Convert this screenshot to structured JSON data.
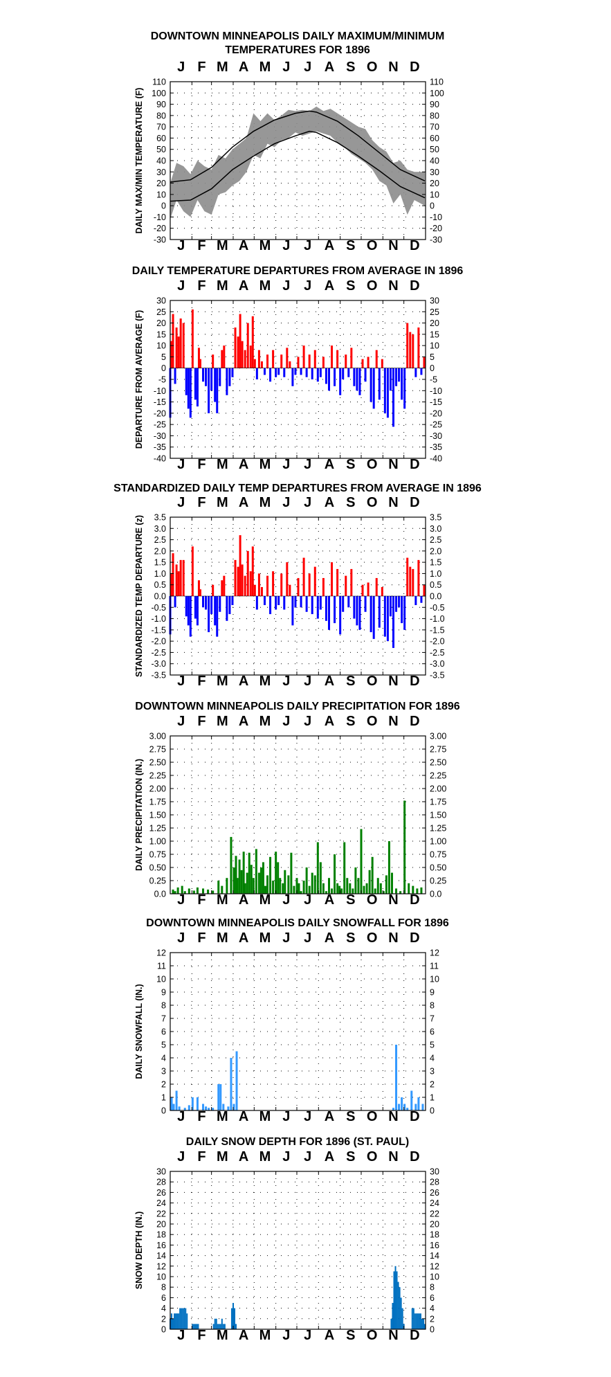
{
  "months": [
    "J",
    "F",
    "M",
    "A",
    "M",
    "J",
    "J",
    "A",
    "S",
    "O",
    "N",
    "D"
  ],
  "chart_data": [
    {
      "type": "line",
      "title": "DOWNTOWN MINNEAPOLIS DAILY MAXIMUM/MINIMUM",
      "subtitle": "TEMPERATURES FOR 1896",
      "ylabel": "DAILY MAX/MIN TEMPERATURE (F)",
      "ylim": [
        -30,
        110
      ],
      "yticks": [
        -30,
        -20,
        -10,
        0,
        10,
        20,
        30,
        40,
        50,
        60,
        70,
        80,
        90,
        100,
        110
      ],
      "ytick_labels": [
        "-30",
        "-20",
        "-10",
        "0",
        "10",
        "20",
        "30",
        "40",
        "50",
        "60",
        "70",
        "80",
        "90",
        "100",
        "110"
      ],
      "x_unit": "day of year",
      "series": [
        {
          "kind": "band",
          "color": "#8c8c8c",
          "x": [
            1,
            10,
            20,
            30,
            40,
            50,
            60,
            70,
            80,
            90,
            100,
            110,
            120,
            130,
            140,
            150,
            160,
            170,
            180,
            190,
            200,
            210,
            220,
            230,
            240,
            250,
            260,
            270,
            280,
            290,
            300,
            310,
            320,
            330,
            340,
            350,
            365
          ],
          "high": [
            20,
            38,
            35,
            28,
            40,
            35,
            32,
            45,
            42,
            50,
            55,
            60,
            82,
            75,
            82,
            76,
            80,
            85,
            84,
            85,
            84,
            88,
            84,
            86,
            82,
            78,
            74,
            70,
            68,
            58,
            52,
            48,
            38,
            40,
            32,
            30,
            30
          ],
          "low": [
            -12,
            5,
            -5,
            -10,
            5,
            -5,
            -8,
            10,
            12,
            18,
            22,
            30,
            45,
            42,
            55,
            52,
            58,
            60,
            65,
            62,
            64,
            66,
            64,
            62,
            56,
            52,
            46,
            42,
            38,
            32,
            22,
            18,
            2,
            10,
            -8,
            5,
            0
          ]
        },
        {
          "kind": "normal_high",
          "color": "#000000",
          "x": [
            1,
            30,
            60,
            90,
            120,
            150,
            180,
            200,
            210,
            240,
            270,
            300,
            330,
            365
          ],
          "y": [
            21,
            23,
            34,
            52,
            66,
            76,
            82,
            84,
            83,
            75,
            62,
            47,
            32,
            22
          ]
        },
        {
          "kind": "normal_low",
          "color": "#000000",
          "x": [
            1,
            30,
            60,
            90,
            120,
            150,
            180,
            200,
            210,
            240,
            270,
            300,
            330,
            365
          ],
          "y": [
            4,
            5,
            15,
            32,
            44,
            55,
            62,
            66,
            65,
            56,
            44,
            31,
            17,
            7
          ]
        }
      ]
    },
    {
      "type": "bar",
      "title": "DAILY TEMPERATURE DEPARTURES FROM AVERAGE IN 1896",
      "ylabel": "DEPARTURE FROM AVERAGE (F)",
      "ylim": [
        -40,
        30
      ],
      "yticks": [
        -40,
        -35,
        -30,
        -25,
        -20,
        -15,
        -10,
        -5,
        0,
        5,
        10,
        15,
        20,
        25,
        30
      ],
      "ytick_labels": [
        "-40",
        "-35",
        "-30",
        "-25",
        "-20",
        "-15",
        "-10",
        "-5",
        "0",
        "5",
        "10",
        "15",
        "20",
        "25",
        "30"
      ],
      "positive_color": "#ff0000",
      "negative_color": "#0000ff",
      "x": [
        1,
        3,
        5,
        8,
        10,
        13,
        16,
        20,
        24,
        27,
        30,
        33,
        37,
        40,
        42,
        44,
        48,
        52,
        56,
        60,
        62,
        65,
        68,
        72,
        75,
        78,
        82,
        86,
        90,
        94,
        98,
        101,
        104,
        108,
        112,
        116,
        119,
        122,
        125,
        128,
        132,
        136,
        140,
        144,
        148,
        152,
        156,
        160,
        164,
        168,
        172,
        176,
        180,
        184,
        188,
        192,
        196,
        200,
        204,
        208,
        212,
        216,
        220,
        224,
        228,
        232,
        236,
        240,
        244,
        248,
        252,
        256,
        260,
        264,
        268,
        272,
        276,
        280,
        284,
        288,
        292,
        296,
        300,
        304,
        308,
        312,
        316,
        320,
        324,
        328,
        332,
        336,
        340,
        344,
        348,
        352,
        356,
        360,
        364
      ],
      "values": [
        -22,
        12,
        24,
        -7,
        18,
        14,
        22,
        20,
        -12,
        -18,
        -22,
        26,
        -14,
        -17,
        9,
        4,
        -6,
        -8,
        -20,
        -10,
        6,
        -15,
        -20,
        -8,
        8,
        10,
        -12,
        -8,
        -4,
        18,
        14,
        24,
        12,
        8,
        20,
        10,
        23,
        4,
        -5,
        8,
        3,
        -3,
        6,
        -6,
        8,
        -4,
        -3,
        6,
        -4,
        9,
        3,
        -8,
        -3,
        5,
        -3,
        10,
        -4,
        6,
        -5,
        8,
        -6,
        -4,
        5,
        -7,
        -10,
        10,
        -8,
        8,
        -12,
        -5,
        6,
        -4,
        9,
        -8,
        -10,
        -12,
        4,
        -6,
        5,
        -15,
        -18,
        8,
        -14,
        4,
        -20,
        -22,
        -10,
        -26,
        -8,
        -6,
        -14,
        -18,
        20,
        16,
        15,
        -4,
        18,
        -3,
        5
      ]
    },
    {
      "type": "bar",
      "title": "STANDARDIZED DAILY TEMP DEPARTURES FROM AVERAGE IN 1896",
      "ylabel": "STANDARDIZED TEMP DEPARTURE (z)",
      "ylim": [
        -3.5,
        3.5
      ],
      "yticks": [
        -3.5,
        -3,
        -2.5,
        -2,
        -1.5,
        -1,
        -0.5,
        0,
        0.5,
        1,
        1.5,
        2,
        2.5,
        3,
        3.5
      ],
      "ytick_labels": [
        "-3.5",
        "-3.0",
        "-2.5",
        "-2.0",
        "-1.5",
        "-1.0",
        "-0.5",
        "0.0",
        "0.5",
        "1.0",
        "1.5",
        "2.0",
        "2.5",
        "3.0",
        "3.5"
      ],
      "positive_color": "#ff0000",
      "negative_color": "#0000ff",
      "x": [
        1,
        3,
        5,
        8,
        10,
        13,
        16,
        20,
        24,
        27,
        30,
        33,
        37,
        40,
        42,
        44,
        48,
        52,
        56,
        60,
        62,
        65,
        68,
        72,
        75,
        78,
        82,
        86,
        90,
        94,
        98,
        101,
        104,
        108,
        112,
        116,
        119,
        122,
        125,
        128,
        132,
        136,
        140,
        144,
        148,
        152,
        156,
        160,
        164,
        168,
        172,
        176,
        180,
        184,
        188,
        192,
        196,
        200,
        204,
        208,
        212,
        216,
        220,
        224,
        228,
        232,
        236,
        240,
        244,
        248,
        252,
        256,
        260,
        264,
        268,
        272,
        276,
        280,
        284,
        288,
        292,
        296,
        300,
        304,
        308,
        312,
        316,
        320,
        324,
        328,
        332,
        336,
        340,
        344,
        348,
        352,
        356,
        360,
        364
      ],
      "values": [
        -1.7,
        1.0,
        1.9,
        -0.5,
        1.4,
        1.1,
        1.6,
        1.6,
        -0.9,
        -1.3,
        -1.8,
        2.2,
        -1.0,
        -1.3,
        0.7,
        0.3,
        -0.5,
        -0.6,
        -1.6,
        -0.8,
        0.5,
        -1.3,
        -1.8,
        -0.7,
        0.7,
        0.9,
        -1.1,
        -0.8,
        -0.4,
        1.6,
        1.3,
        2.7,
        1.4,
        0.9,
        2.0,
        1.1,
        2.2,
        0.5,
        -0.6,
        1.0,
        0.4,
        -0.4,
        0.9,
        -0.8,
        1.1,
        -0.6,
        -0.4,
        1.0,
        -0.6,
        1.5,
        0.5,
        -1.3,
        -0.5,
        0.8,
        -0.5,
        1.7,
        -0.7,
        1.0,
        -0.8,
        1.3,
        -1.0,
        -0.6,
        0.8,
        -1.1,
        -1.5,
        1.5,
        -1.2,
        1.2,
        -1.7,
        -0.7,
        0.9,
        -0.5,
        1.2,
        -1.0,
        -1.3,
        -1.5,
        0.5,
        -0.7,
        0.6,
        -1.6,
        -1.9,
        0.8,
        -1.4,
        0.4,
        -1.8,
        -2.0,
        -0.9,
        -2.3,
        -0.7,
        -0.5,
        -1.2,
        -1.5,
        1.7,
        1.3,
        1.2,
        -0.4,
        1.6,
        -0.3,
        0.5
      ]
    },
    {
      "type": "bar",
      "title": "DOWNTOWN MINNEAPOLIS DAILY PRECIPITATION FOR 1896",
      "ylabel": "DAILY PRECIPITATION (IN.)",
      "ylim": [
        0,
        3
      ],
      "yticks": [
        0,
        0.25,
        0.5,
        0.75,
        1,
        1.25,
        1.5,
        1.75,
        2,
        2.25,
        2.5,
        2.75,
        3
      ],
      "ytick_labels": [
        "0.0",
        "0.25",
        "0.50",
        "0.75",
        "1.00",
        "1.25",
        "1.50",
        "1.75",
        "2.00",
        "2.25",
        "2.50",
        "2.75",
        "3.00"
      ],
      "color": "#008000",
      "x": [
        5,
        8,
        12,
        18,
        22,
        28,
        35,
        40,
        48,
        55,
        62,
        70,
        75,
        82,
        88,
        92,
        95,
        97,
        100,
        103,
        106,
        108,
        111,
        114,
        117,
        120,
        124,
        128,
        131,
        134,
        137,
        140,
        144,
        148,
        152,
        155,
        158,
        162,
        165,
        170,
        174,
        178,
        182,
        185,
        188,
        192,
        196,
        200,
        204,
        208,
        212,
        216,
        220,
        224,
        228,
        232,
        236,
        240,
        243,
        246,
        250,
        254,
        258,
        262,
        266,
        270,
        274,
        278,
        282,
        286,
        290,
        294,
        298,
        302,
        306,
        310,
        314,
        318,
        324,
        330,
        336,
        342,
        348,
        354,
        360
      ],
      "values": [
        0.08,
        0.05,
        0.12,
        0.15,
        0.05,
        0.1,
        0.06,
        0.12,
        0.1,
        0.08,
        0.06,
        0.25,
        0.15,
        0.3,
        1.08,
        0.5,
        0.72,
        0.3,
        0.65,
        0.45,
        0.8,
        0.2,
        0.4,
        0.78,
        0.55,
        0.3,
        0.85,
        0.4,
        0.5,
        0.6,
        0.15,
        0.35,
        0.7,
        0.25,
        0.8,
        0.6,
        0.3,
        0.2,
        0.45,
        0.35,
        0.78,
        0.15,
        0.3,
        0.2,
        0.05,
        0.25,
        0.5,
        0.15,
        0.4,
        0.35,
        0.98,
        0.6,
        0.2,
        0.05,
        0.3,
        0.1,
        0.75,
        0.2,
        0.15,
        0.1,
        0.98,
        0.3,
        0.2,
        0.1,
        0.5,
        0.3,
        1.23,
        0.15,
        0.2,
        0.45,
        0.7,
        0.1,
        0.3,
        0.2,
        0.05,
        0.35,
        1.0,
        0.4,
        0.1,
        0.05,
        1.77,
        0.2,
        0.15,
        0.1,
        0.12
      ]
    },
    {
      "type": "bar",
      "title": "DOWNTOWN MINNEAPOLIS DAILY SNOWFALL FOR 1896",
      "ylabel": "DAILY SNOWFALL (IN.)",
      "ylim": [
        0,
        12
      ],
      "yticks": [
        0,
        1,
        2,
        3,
        4,
        5,
        6,
        7,
        8,
        9,
        10,
        11,
        12
      ],
      "ytick_labels": [
        "0",
        "1",
        "2",
        "3",
        "4",
        "5",
        "6",
        "7",
        "8",
        "9",
        "10",
        "11",
        "12"
      ],
      "color": "#3399ff",
      "x": [
        3,
        6,
        10,
        14,
        22,
        28,
        33,
        40,
        48,
        52,
        56,
        62,
        70,
        73,
        77,
        84,
        88,
        92,
        96,
        320,
        324,
        328,
        332,
        336,
        340,
        346,
        352,
        356,
        362
      ],
      "values": [
        1.0,
        0.5,
        1.5,
        0.3,
        0.2,
        0.4,
        1.0,
        1.0,
        0.5,
        0.3,
        0.2,
        0.2,
        2.0,
        2.0,
        0.5,
        0.3,
        4.0,
        0.5,
        4.5,
        0.2,
        5.0,
        0.5,
        1.0,
        0.5,
        0.2,
        1.5,
        0.5,
        1.0,
        0.5
      ]
    },
    {
      "type": "area",
      "title": "DAILY SNOW DEPTH FOR 1896 (ST. PAUL)",
      "ylabel": "SNOW DEPTH (IN.)",
      "ylim": [
        0,
        30
      ],
      "yticks": [
        0,
        2,
        4,
        6,
        8,
        10,
        12,
        14,
        16,
        18,
        20,
        22,
        24,
        26,
        28,
        30
      ],
      "ytick_labels": [
        "0",
        "2",
        "4",
        "6",
        "8",
        "10",
        "12",
        "14",
        "16",
        "18",
        "20",
        "22",
        "24",
        "26",
        "28",
        "30"
      ],
      "color": "#0070c0",
      "x": [
        1,
        3,
        5,
        7,
        9,
        11,
        13,
        15,
        17,
        19,
        21,
        23,
        25,
        27,
        29,
        31,
        33,
        35,
        37,
        39,
        41,
        43,
        45,
        47,
        49,
        51,
        53,
        55,
        57,
        59,
        61,
        63,
        65,
        67,
        69,
        71,
        73,
        75,
        77,
        79,
        81,
        83,
        85,
        87,
        89,
        91,
        93,
        95,
        97,
        99,
        101,
        103,
        315,
        317,
        319,
        321,
        323,
        325,
        327,
        329,
        331,
        333,
        335,
        337,
        339,
        341,
        343,
        345,
        347,
        349,
        351,
        353,
        355,
        357,
        359,
        361,
        363,
        365
      ],
      "values": [
        2,
        3,
        2,
        3,
        3,
        3,
        3,
        4,
        4,
        4,
        4,
        4,
        3,
        0,
        0,
        0,
        1,
        1,
        1,
        1,
        1,
        0,
        0,
        0,
        0,
        0,
        0,
        0,
        0,
        0,
        0,
        1,
        2,
        2,
        1,
        1,
        1,
        2,
        1,
        1,
        0,
        0,
        0,
        0,
        4,
        5,
        4,
        1,
        0,
        0,
        0,
        0,
        0,
        2,
        5,
        11,
        12,
        11,
        9,
        8,
        6,
        4,
        1,
        0,
        0,
        0,
        0,
        0,
        4,
        4,
        3,
        3,
        3,
        3,
        3,
        2,
        2,
        1
      ]
    }
  ]
}
